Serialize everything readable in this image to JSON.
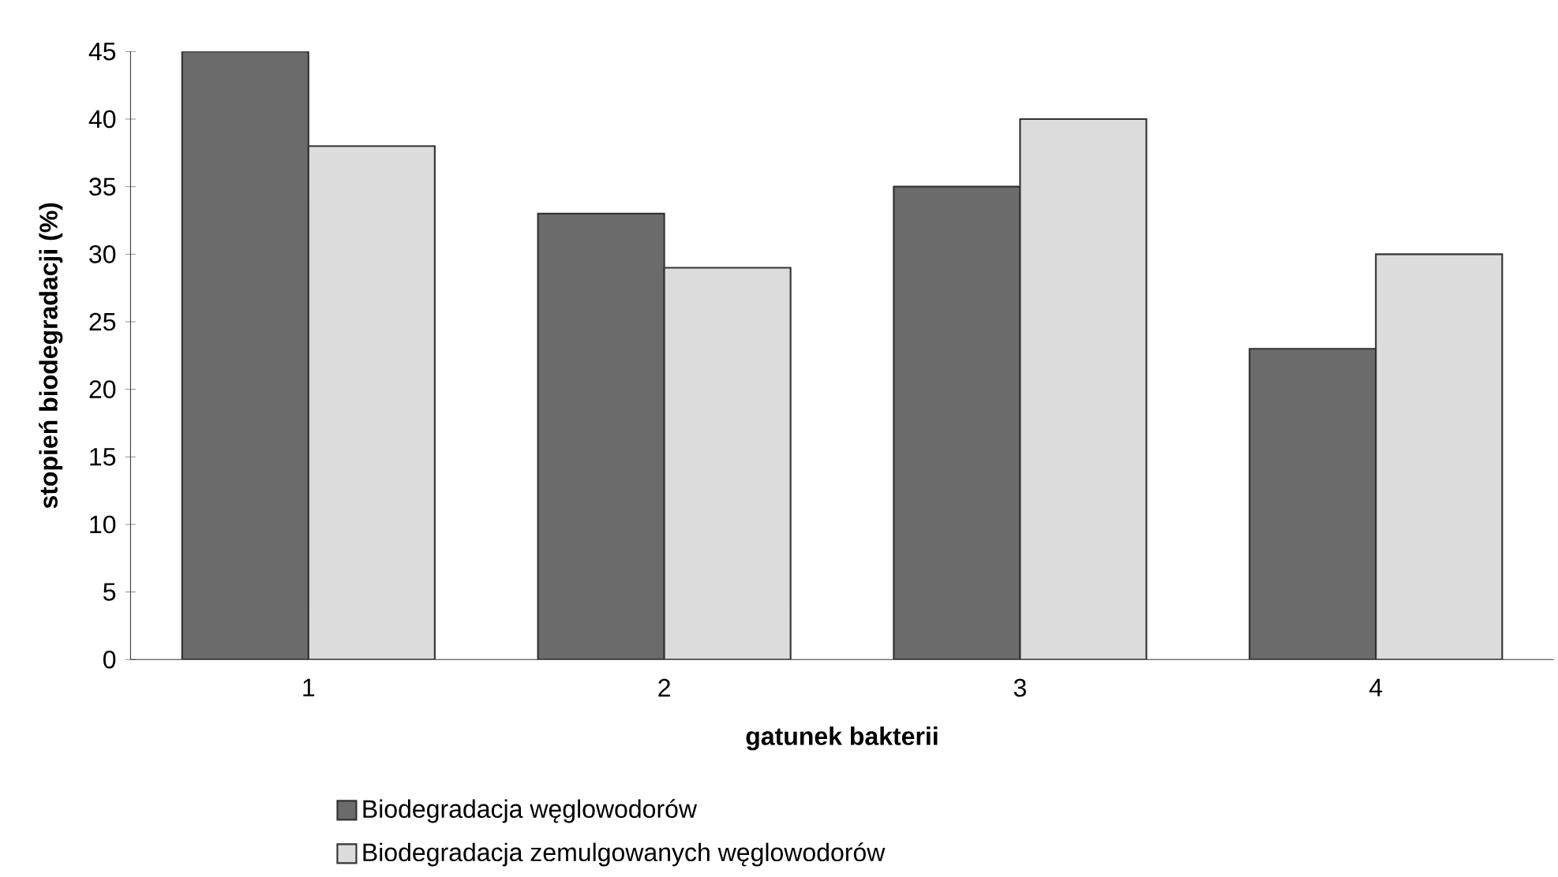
{
  "chart_data": {
    "type": "bar",
    "xlabel": "gatunek bakterii",
    "ylabel": "stopień biodegradacji (%)",
    "categories": [
      "1",
      "2",
      "3",
      "4"
    ],
    "series": [
      {
        "name": "Biodegradacja węglowodorów",
        "color": "#6b6b6b",
        "values": [
          45,
          33,
          35,
          23
        ]
      },
      {
        "name": "Biodegradacja zemulgowanych węglowodorów",
        "color": "#dcdcdc",
        "values": [
          38,
          29,
          40,
          30
        ]
      }
    ],
    "ylim": [
      0,
      45
    ],
    "yticks": [
      0,
      5,
      10,
      15,
      20,
      25,
      30,
      35,
      40,
      45
    ],
    "legend": "bottom"
  }
}
